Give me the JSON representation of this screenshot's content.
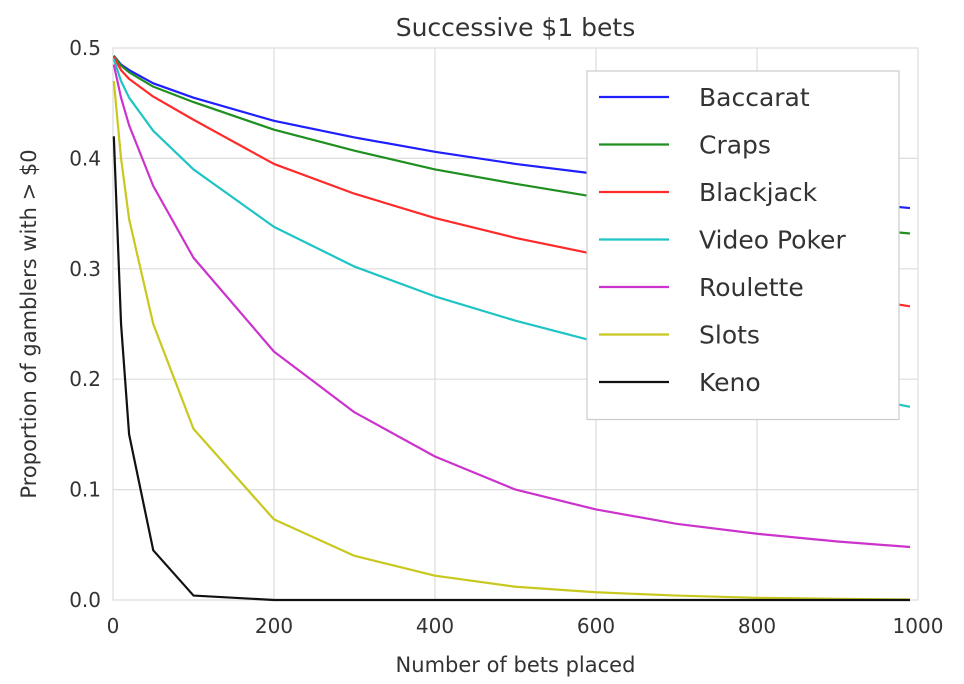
{
  "chart_data": {
    "type": "line",
    "title": "Successive $1 bets",
    "xlabel": "Number of bets placed",
    "ylabel": "Proportion of gamblers with > $0",
    "xlim": [
      0,
      1000
    ],
    "ylim": [
      0,
      0.5
    ],
    "xticks": [
      0,
      200,
      400,
      600,
      800,
      1000
    ],
    "yticks": [
      0.0,
      0.1,
      0.2,
      0.3,
      0.4,
      0.5
    ],
    "xtick_labels": [
      "0",
      "200",
      "400",
      "600",
      "800",
      "1000"
    ],
    "ytick_labels": [
      "0.0",
      "0.1",
      "0.2",
      "0.3",
      "0.4",
      "0.5"
    ],
    "grid": true,
    "legend_position": "upper-right",
    "x": [
      1,
      10,
      20,
      50,
      100,
      200,
      300,
      400,
      500,
      600,
      700,
      800,
      900,
      990
    ],
    "series": [
      {
        "name": "Baccarat",
        "color": "#1f1fff",
        "values": [
          0.493,
          0.485,
          0.48,
          0.468,
          0.455,
          0.434,
          0.419,
          0.406,
          0.395,
          0.386,
          0.376,
          0.368,
          0.361,
          0.355
        ]
      },
      {
        "name": "Craps",
        "color": "#1f8f1f",
        "values": [
          0.493,
          0.484,
          0.478,
          0.465,
          0.451,
          0.426,
          0.407,
          0.39,
          0.377,
          0.365,
          0.355,
          0.346,
          0.338,
          0.332
        ]
      },
      {
        "name": "Blackjack",
        "color": "#ff2a2a",
        "values": [
          0.492,
          0.48,
          0.472,
          0.456,
          0.435,
          0.395,
          0.368,
          0.346,
          0.328,
          0.313,
          0.299,
          0.287,
          0.276,
          0.266
        ]
      },
      {
        "name": "Video Poker",
        "color": "#1fc4c4",
        "values": [
          0.49,
          0.47,
          0.455,
          0.425,
          0.39,
          0.338,
          0.302,
          0.275,
          0.253,
          0.234,
          0.217,
          0.202,
          0.188,
          0.175
        ]
      },
      {
        "name": "Roulette",
        "color": "#cc33cc",
        "values": [
          0.485,
          0.455,
          0.43,
          0.375,
          0.31,
          0.225,
          0.17,
          0.13,
          0.1,
          0.082,
          0.069,
          0.06,
          0.053,
          0.048
        ]
      },
      {
        "name": "Slots",
        "color": "#c8c81f",
        "values": [
          0.47,
          0.4,
          0.345,
          0.25,
          0.155,
          0.073,
          0.04,
          0.022,
          0.012,
          0.007,
          0.004,
          0.002,
          0.001,
          0.0005
        ]
      },
      {
        "name": "Keno",
        "color": "#111111",
        "values": [
          0.42,
          0.25,
          0.15,
          0.045,
          0.004,
          0.0,
          0.0,
          0.0,
          0.0,
          0.0,
          0.0,
          0.0,
          0.0,
          0.0
        ]
      }
    ]
  }
}
